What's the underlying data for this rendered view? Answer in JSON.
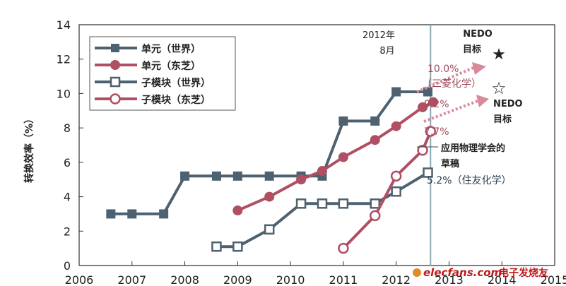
{
  "chart_data": {
    "type": "line",
    "ylabel": "转换效率（%）",
    "xlim": [
      2006,
      2015
    ],
    "ylim": [
      0,
      14
    ],
    "xticks": [
      "2006",
      "2007",
      "2008",
      "2009",
      "2010",
      "2011",
      "2012",
      "2013",
      "2014",
      "2015"
    ],
    "yticks": [
      "0",
      "2",
      "4",
      "6",
      "8",
      "10",
      "12",
      "14"
    ],
    "grid": false,
    "legend_position": "top-left",
    "series": [
      {
        "name": "单元（世界）",
        "color": "#4d6170",
        "marker": "square-filled",
        "x": [
          2006.6,
          2007.0,
          2007.6,
          2008.0,
          2008.6,
          2009.0,
          2009.6,
          2010.2,
          2010.6,
          2011.0,
          2011.6,
          2012.0,
          2012.6
        ],
        "y": [
          3.0,
          3.0,
          3.0,
          5.2,
          5.2,
          5.2,
          5.2,
          5.2,
          5.2,
          8.4,
          8.4,
          10.1,
          10.1
        ]
      },
      {
        "name": "单元（东芝）",
        "color": "#b04f63",
        "marker": "circle-filled",
        "x": [
          2009.0,
          2009.6,
          2010.2,
          2010.6,
          2011.0,
          2011.6,
          2012.0,
          2012.5,
          2012.7
        ],
        "y": [
          3.2,
          4.0,
          5.0,
          5.5,
          6.3,
          7.3,
          8.1,
          9.2,
          9.5
        ]
      },
      {
        "name": "子模块（世界）",
        "color": "#4d6170",
        "marker": "square-open",
        "x": [
          2008.6,
          2009.0,
          2009.6,
          2010.2,
          2010.6,
          2011.0,
          2011.6,
          2012.0,
          2012.6
        ],
        "y": [
          1.1,
          1.1,
          2.1,
          3.6,
          3.6,
          3.6,
          3.6,
          4.3,
          5.4
        ]
      },
      {
        "name": "子模块（东芝）",
        "color": "#b04f63",
        "marker": "circle-open",
        "x": [
          2011.0,
          2011.6,
          2012.0,
          2012.5,
          2012.65
        ],
        "y": [
          1.0,
          2.9,
          5.2,
          6.7,
          7.8
        ]
      }
    ],
    "annotations": {
      "date_label_1": "2012年",
      "date_label_2": "8月",
      "nedo_top_1": "NEDO",
      "nedo_top_2": "目标",
      "nedo_right_1": "NEDO",
      "nedo_right_2": "目标",
      "target_pct_1": "10.0%",
      "target_name_1": "（三菱化学）",
      "target_pct_2": "9.2%",
      "target_pct_3": "7.7%",
      "jsap_1": "应用物理学会的",
      "jsap_2": "草稿",
      "sumitomo": "5.2%（住友化学）",
      "nedo_top_star": "★",
      "nedo_right_star": "☆"
    },
    "colors": {
      "blue_series": "#4d6170",
      "pink_series": "#b04f63",
      "arrow": "#d88a9b",
      "vline": "#8ea8b4"
    }
  },
  "watermark": {
    "site": "elecfans.com",
    "cn": "电子发烧友"
  }
}
